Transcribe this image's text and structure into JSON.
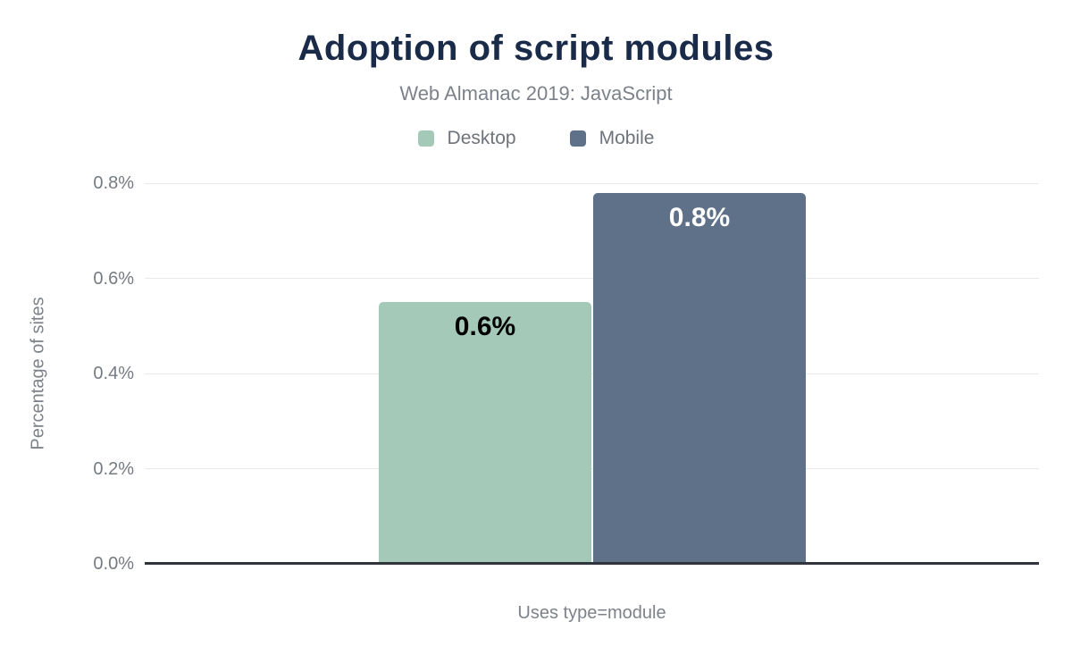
{
  "figure": {
    "title": "Adoption of script modules",
    "subtitle": "Web Almanac 2019: JavaScript"
  },
  "legend": {
    "items": [
      {
        "label": "Desktop",
        "color": "#a5c9b8"
      },
      {
        "label": "Mobile",
        "color": "#5f7189"
      }
    ]
  },
  "axes": {
    "ylabel": "Percentage of sites",
    "xlabel": "Uses type=module"
  },
  "chart_data": {
    "type": "bar",
    "title": "Adoption of script modules",
    "subtitle": "Web Almanac 2019: JavaScript",
    "categories": [
      "Uses type=module"
    ],
    "series": [
      {
        "name": "Desktop",
        "values": [
          0.55
        ],
        "display_labels": [
          "0.6%"
        ],
        "color": "#a5c9b8",
        "label_color": "#000000"
      },
      {
        "name": "Mobile",
        "values": [
          0.78
        ],
        "display_labels": [
          "0.8%"
        ],
        "color": "#5f7189",
        "label_color": "#ffffff"
      }
    ],
    "xlabel": "Uses type=module",
    "ylabel": "Percentage of sites",
    "ylim": [
      0,
      0.8
    ],
    "yticks": [
      {
        "value": 0.0,
        "label": "0.0%"
      },
      {
        "value": 0.2,
        "label": "0.2%"
      },
      {
        "value": 0.4,
        "label": "0.4%"
      },
      {
        "value": 0.6,
        "label": "0.6%"
      },
      {
        "value": 0.8,
        "label": "0.8%"
      }
    ],
    "grid": true,
    "legend_position": "top",
    "colors": {
      "title_text": "#1a2b49",
      "subtitle_text": "#7d828a",
      "tick_text": "#767b83",
      "gridline": "#e8e8e8",
      "axis_line": "#30343b",
      "background": "#ffffff"
    }
  }
}
